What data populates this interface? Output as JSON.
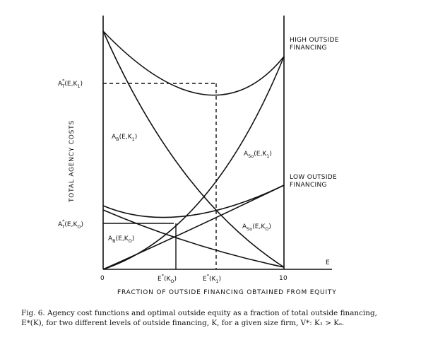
{
  "axes": {
    "y_title": "TOTAL AGENCY COSTS",
    "x_title": "FRACTION OF OUTSIDE FINANCING OBTAINED FROM EQUITY",
    "x_var": "E",
    "x_tick_0": "0",
    "x_tick_1": "10"
  },
  "curve_labels": {
    "high_outside": [
      "HIGH OUTSIDE",
      "FINANCING"
    ],
    "low_outside": [
      "LOW OUTSIDE",
      "FINANCING"
    ],
    "ab_k1": "A",
    "ab_k1_sub": "B",
    "ab_k1_args": "(E,K",
    "ab_k1_idx": "1",
    "ab_k1_close": ")",
    "aso_k1": "A",
    "aso_k1_sub": "So",
    "aso_k1_args": "(E,K",
    "aso_k1_idx": "1",
    "aso_k1_close": ")",
    "ab_k0": "A",
    "ab_k0_sub": "B",
    "ab_k0_args": "(E,K",
    "ab_k0_idx": "O",
    "ab_k0_close": ")",
    "aso_k0": "A",
    "aso_k0_sub": "So",
    "aso_k0_args": "(E,K",
    "aso_k0_idx": "O",
    "aso_k0_close": ")"
  },
  "y_markers": {
    "at_k1": "A",
    "at_k1_sup": "*",
    "at_k1_sub": "T",
    "at_k1_args": "(E,K",
    "at_k1_idx": "1",
    "at_k1_close": ")",
    "at_k0": "A",
    "at_k0_sup": "*",
    "at_k0_sub": "T",
    "at_k0_args": "(E,K",
    "at_k0_idx": "O",
    "at_k0_close": ")"
  },
  "x_markers": {
    "e_k0": "E",
    "e_k0_sup": "*",
    "e_k0_args": "(K",
    "e_k0_idx": "O",
    "e_k0_close": ")",
    "e_k1": "E",
    "e_k1_sup": "*",
    "e_k1_args": "(K",
    "e_k1_idx": "1",
    "e_k1_close": ")"
  },
  "caption": {
    "line1": "Fig. 6. Agency cost functions and optimal outside equity as a fraction of total outside financing,",
    "line2": "E*(K), for two different levels of outside financing, K, for a given size firm, V*: K₁ > Kₒ."
  },
  "colors": {
    "ink": "#111111",
    "paper": "#ffffff"
  }
}
